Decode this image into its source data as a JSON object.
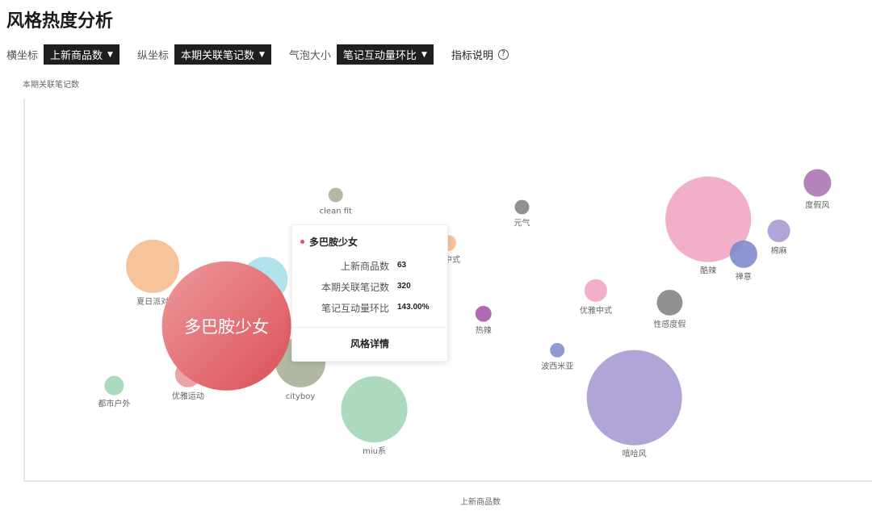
{
  "page": {
    "title": "风格热度分析"
  },
  "controls": {
    "x_label": "横坐标",
    "x_value": "上新商品数",
    "y_label": "纵坐标",
    "y_value": "本期关联笔记数",
    "size_label": "气泡大小",
    "size_value": "笔记互动量环比",
    "help_label": "指标说明",
    "help_icon": "question-circle-icon"
  },
  "chart_data": {
    "type": "scatter",
    "subtype": "bubble",
    "xlabel": "上新商品数",
    "ylabel": "本期关联笔记数",
    "size_metric": "笔记互动量环比",
    "xlim": [
      0,
      264
    ],
    "ylim": [
      0,
      789
    ],
    "grid": false,
    "points": [
      {
        "name": "",
        "x": 75,
        "y": 416,
        "size": 17.5,
        "color": "#a8e0ea"
      },
      {
        "name": "夏日派对",
        "x": 40,
        "y": 443,
        "size": 24.3,
        "color": "#f6bd8f"
      },
      {
        "name": "clean fit",
        "x": 97,
        "y": 590,
        "size": 1.8,
        "color": "#a8b49a"
      },
      {
        "name": "新中式",
        "x": 132,
        "y": 491,
        "size": 2.2,
        "color": "#f6bd8f"
      },
      {
        "name": "元气",
        "x": 155,
        "y": 565,
        "size": 1.8,
        "color": "#858585"
      },
      {
        "name": "热辣",
        "x": 143,
        "y": 345,
        "size": 2.2,
        "color": "#a75aa8"
      },
      {
        "name": "优雅中式",
        "x": 178,
        "y": 393,
        "size": 4.4,
        "color": "#f0a6c4"
      },
      {
        "name": "波西米亚",
        "x": 166,
        "y": 270,
        "size": 1.8,
        "color": "#8590cc"
      },
      {
        "name": "嘻哈风",
        "x": 190,
        "y": 172,
        "size": 77.8,
        "color": "#a99bd3"
      },
      {
        "name": "性感度假",
        "x": 201,
        "y": 368,
        "size": 5.7,
        "color": "#858585"
      },
      {
        "name": "酷辣",
        "x": 213,
        "y": 540,
        "size": 62.8,
        "color": "#f0a6c4"
      },
      {
        "name": "禅意",
        "x": 224,
        "y": 468,
        "size": 6.5,
        "color": "#7f8bcb"
      },
      {
        "name": "棉麻",
        "x": 235,
        "y": 516,
        "size": 4.4,
        "color": "#a99bd3"
      },
      {
        "name": "度假风",
        "x": 247,
        "y": 615,
        "size": 6.5,
        "color": "#ad75b5"
      },
      {
        "name": "都市户外",
        "x": 28,
        "y": 197,
        "size": 3.2,
        "color": "#a3d6b8"
      },
      {
        "name": "优雅运动",
        "x": 51,
        "y": 220,
        "size": 5.7,
        "color": "#e9999c"
      },
      {
        "name": "cityboy",
        "x": 86,
        "y": 245,
        "size": 21.5,
        "color": "#a9b09a"
      },
      {
        "name": "miu系",
        "x": 109,
        "y": 148,
        "size": 37.6,
        "color": "#a3d6b8"
      },
      {
        "name": "多巴胺少女",
        "x": 63,
        "y": 320,
        "size": 143,
        "color": "#e0606a",
        "highlighted": true
      }
    ]
  },
  "tooltip": {
    "title": "多巴胺少女",
    "rows": [
      {
        "label": "上新商品数",
        "value": "63"
      },
      {
        "label": "本期关联笔记数",
        "value": "320"
      },
      {
        "label": "笔记互动量环比",
        "value": "143.00%"
      }
    ],
    "action": "风格详情"
  }
}
